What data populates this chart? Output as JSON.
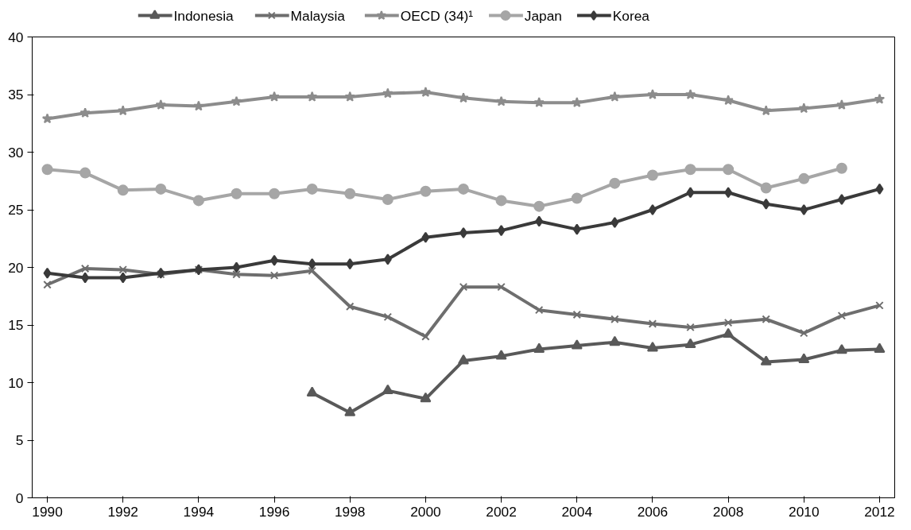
{
  "chart_data": {
    "type": "line",
    "x": [
      1990,
      1991,
      1992,
      1993,
      1994,
      1995,
      1996,
      1997,
      1998,
      1999,
      2000,
      2001,
      2002,
      2003,
      2004,
      2005,
      2006,
      2007,
      2008,
      2009,
      2010,
      2011,
      2012
    ],
    "series": [
      {
        "name": "Indonesia",
        "color": "#595959",
        "marker": "triangle",
        "values": [
          null,
          null,
          null,
          null,
          null,
          null,
          null,
          9.1,
          7.4,
          9.3,
          8.6,
          11.9,
          12.3,
          12.9,
          13.2,
          13.5,
          13.0,
          13.3,
          14.2,
          11.8,
          12.0,
          12.8,
          12.9
        ]
      },
      {
        "name": "Malaysia",
        "color": "#6e6e6e",
        "marker": "cross",
        "values": [
          18.5,
          19.9,
          19.8,
          19.4,
          19.8,
          19.4,
          19.3,
          19.7,
          16.6,
          15.7,
          14.0,
          18.3,
          18.3,
          16.3,
          15.9,
          15.5,
          15.1,
          14.8,
          15.2,
          15.5,
          14.3,
          15.8,
          16.7
        ]
      },
      {
        "name": "OECD (34)¹",
        "color": "#8c8c8c",
        "marker": "star",
        "values": [
          32.9,
          33.4,
          33.6,
          34.1,
          34.0,
          34.4,
          34.8,
          34.8,
          34.8,
          35.1,
          35.2,
          34.7,
          34.4,
          34.3,
          34.3,
          34.8,
          35.0,
          35.0,
          34.5,
          33.6,
          33.8,
          34.1,
          34.6
        ]
      },
      {
        "name": "Japan",
        "color": "#a6a6a6",
        "marker": "circle",
        "values": [
          28.5,
          28.2,
          26.7,
          26.8,
          25.8,
          26.4,
          26.4,
          26.8,
          26.4,
          25.9,
          26.6,
          26.8,
          25.8,
          25.3,
          26.0,
          27.3,
          28.0,
          28.5,
          28.5,
          26.9,
          27.7,
          28.6,
          null
        ]
      },
      {
        "name": "Korea",
        "color": "#3a3a3a",
        "marker": "diamond",
        "values": [
          19.5,
          19.1,
          19.1,
          19.5,
          19.8,
          20.0,
          20.6,
          20.3,
          20.3,
          20.7,
          22.6,
          23.0,
          23.2,
          24.0,
          23.3,
          23.9,
          25.0,
          26.5,
          26.5,
          25.5,
          25.0,
          25.9,
          26.8
        ]
      }
    ],
    "xlim": [
      1989.6,
      2012.4
    ],
    "xticks": [
      1990,
      1992,
      1994,
      1996,
      1998,
      2000,
      2002,
      2004,
      2006,
      2008,
      2010,
      2012
    ],
    "ylim": [
      0,
      40
    ],
    "yticks": [
      0,
      5,
      10,
      15,
      20,
      25,
      30,
      35,
      40
    ],
    "grid": false,
    "legend": "top",
    "line_style": "solid"
  }
}
